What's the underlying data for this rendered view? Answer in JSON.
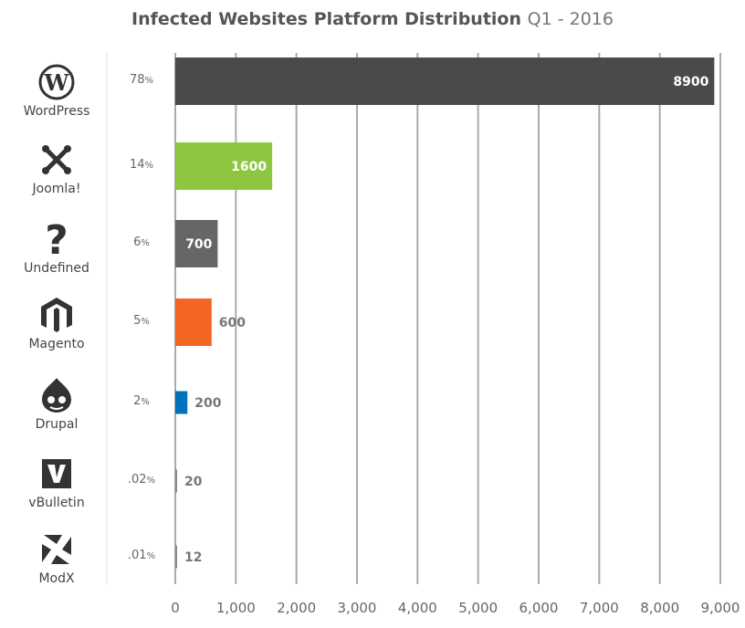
{
  "title": {
    "main": "Infected Websites Platform Distribution",
    "sub": "Q1 - 2016"
  },
  "chart_data": {
    "type": "bar",
    "orientation": "horizontal",
    "title": "Infected Websites Platform Distribution Q1 - 2016",
    "categories": [
      "WordPress",
      "Joomla!",
      "Undefined",
      "Magento",
      "Drupal",
      "vBulletin",
      "ModX"
    ],
    "values": [
      8900,
      1600,
      700,
      600,
      200,
      20,
      12
    ],
    "percent_labels": [
      "78",
      "14",
      "6",
      "5",
      "2",
      ".02",
      ".01"
    ],
    "percent_sign": "%",
    "value_labels": [
      "8900",
      "1600",
      "700",
      "600",
      "200",
      "20",
      "12"
    ],
    "colors": [
      "#4a4a4a",
      "#8dc63f",
      "#666666",
      "#f26522",
      "#0072bc",
      "#888888",
      "#888888"
    ],
    "icons": [
      "wordpress-icon",
      "joomla-icon",
      "question-icon",
      "magento-icon",
      "drupal-icon",
      "vbulletin-icon",
      "modx-icon"
    ],
    "xlim": [
      0,
      9000
    ],
    "xticks": [
      "0",
      "1,000",
      "2,000",
      "3,000",
      "4,000",
      "5,000",
      "6,000",
      "7,000",
      "8,000",
      "9,000"
    ],
    "grid": true
  }
}
